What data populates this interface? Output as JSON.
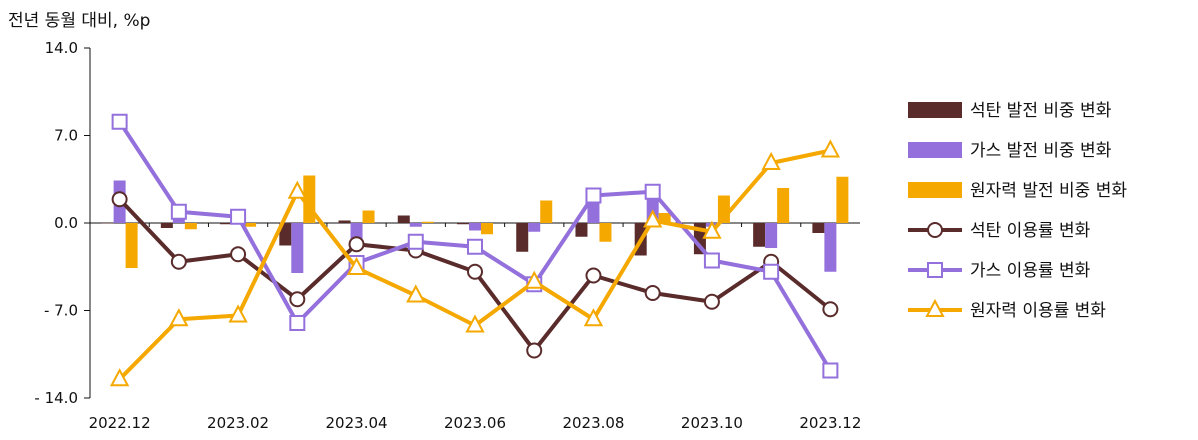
{
  "unit_label": "전년 동월 대비, %p",
  "colors": {
    "coal": "#5a2b2b",
    "gas": "#9370db",
    "nuclear": "#f5a800"
  },
  "chart_data": {
    "type": "bar",
    "x": [
      "2022.12",
      "2023.01",
      "2023.02",
      "2023.03",
      "2023.04",
      "2023.05",
      "2023.06",
      "2023.07",
      "2023.08",
      "2023.09",
      "2023.10",
      "2023.11",
      "2023.12"
    ],
    "x_tick_labels": [
      "2022.12",
      "2023.02",
      "2023.04",
      "2023.06",
      "2023.08",
      "2023.10",
      "2023.12"
    ],
    "y_ticks": [
      14.0,
      7.0,
      0.0,
      -7.0,
      -14.0
    ],
    "y_tick_labels": [
      "14.0",
      "7.0",
      "0.0",
      "- 7.0",
      "- 14.0"
    ],
    "ylim": [
      -14,
      14
    ],
    "legend_position": "right",
    "series": [
      {
        "name": "석탄 발전 비중 변화",
        "kind": "bar",
        "color": "#5a2b2b",
        "values": [
          0.0,
          -0.4,
          -0.1,
          -1.8,
          0.2,
          0.6,
          -0.1,
          -2.3,
          -1.1,
          -2.6,
          -2.5,
          -1.9,
          -0.8
        ]
      },
      {
        "name": "가스 발전 비중 변화",
        "kind": "bar",
        "color": "#9370db",
        "values": [
          3.4,
          0.3,
          0.2,
          -4.0,
          -1.8,
          -0.3,
          -0.6,
          -0.7,
          2.3,
          2.6,
          -0.3,
          -2.0,
          -3.9
        ]
      },
      {
        "name": "원자력 발전 비중 변화",
        "kind": "bar",
        "color": "#f5a800",
        "values": [
          -3.6,
          -0.5,
          -0.3,
          3.8,
          1.0,
          0.1,
          -0.9,
          1.8,
          -1.5,
          0.8,
          2.2,
          2.8,
          3.7
        ]
      },
      {
        "name": "석탄 이용률 변화",
        "kind": "line",
        "marker": "circle",
        "color": "#5a2b2b",
        "values": [
          1.9,
          -3.1,
          -2.5,
          -6.1,
          -1.7,
          -2.2,
          -3.9,
          -10.2,
          -4.2,
          -5.6,
          -6.3,
          -3.1,
          -6.9
        ]
      },
      {
        "name": "가스 이용률 변화",
        "kind": "line",
        "marker": "square",
        "color": "#9370db",
        "values": [
          8.1,
          0.9,
          0.5,
          -8.0,
          -3.2,
          -1.5,
          -1.9,
          -4.9,
          2.2,
          2.5,
          -3.0,
          -3.9,
          -11.8
        ]
      },
      {
        "name": "원자력 이용률 변화",
        "kind": "line",
        "marker": "triangle",
        "color": "#f5a800",
        "values": [
          -12.5,
          -7.7,
          -7.4,
          2.5,
          -3.6,
          -5.8,
          -8.2,
          -4.7,
          -7.7,
          0.2,
          -0.7,
          4.8,
          5.8
        ]
      }
    ]
  }
}
